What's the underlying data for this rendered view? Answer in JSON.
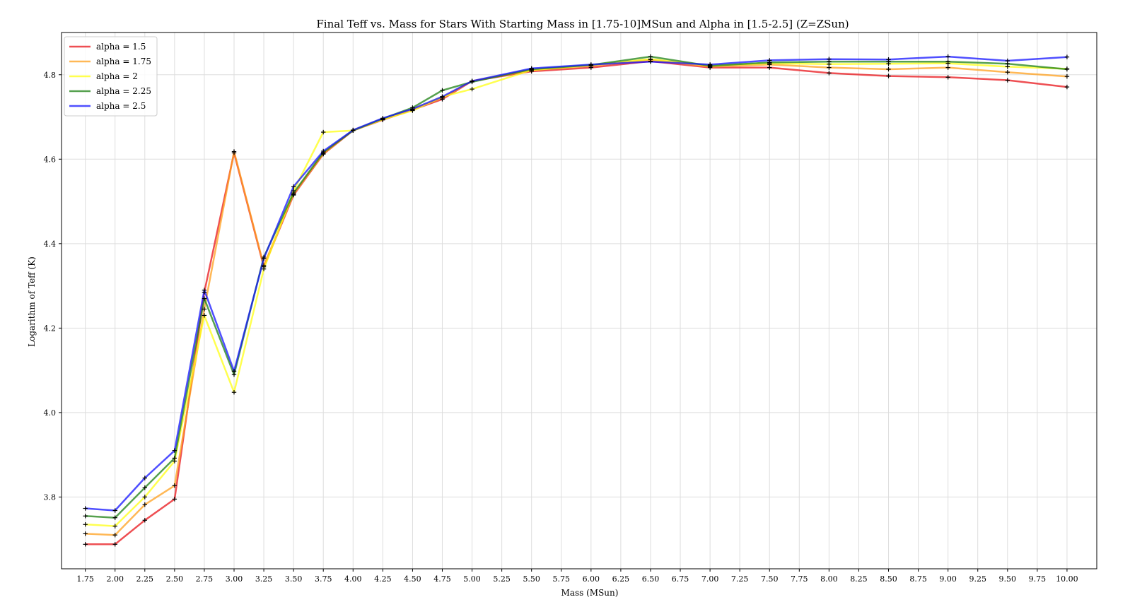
{
  "chart_data": {
    "type": "line",
    "title": "Final Teff vs. Mass for Stars With Starting Mass in [1.75-10]MSun and Alpha in [1.5-2.5] (Z=ZSun)",
    "xlabel": "Mass (MSun)",
    "ylabel": "Logarithm of Teff (K)",
    "xlim": [
      1.55,
      10.25
    ],
    "ylim": [
      3.63,
      4.9
    ],
    "x_ticks": [
      "1.75",
      "2.00",
      "2.25",
      "2.50",
      "2.75",
      "3.00",
      "3.25",
      "3.50",
      "3.75",
      "4.00",
      "4.25",
      "4.50",
      "4.75",
      "5.00",
      "5.25",
      "5.50",
      "5.75",
      "6.00",
      "6.25",
      "6.50",
      "6.75",
      "7.00",
      "7.25",
      "7.50",
      "7.75",
      "8.00",
      "8.25",
      "8.50",
      "8.75",
      "9.00",
      "9.25",
      "9.50",
      "9.75",
      "10.00"
    ],
    "y_ticks": [
      "3.8",
      "4.0",
      "4.2",
      "4.4",
      "4.6",
      "4.8"
    ],
    "grid": true,
    "legend_position": "top-left",
    "series": [
      {
        "name": "alpha = 1.5",
        "color": "#e8141a",
        "x": [
          1.75,
          2.0,
          2.25,
          2.5,
          2.75,
          3.0,
          3.25,
          3.5,
          3.75,
          4.0,
          4.25,
          4.5,
          4.75,
          5.0,
          5.5,
          6.0,
          6.5,
          7.0,
          7.5,
          8.0,
          8.5,
          9.0,
          9.5,
          10.0
        ],
        "y": [
          3.688,
          3.688,
          3.745,
          3.795,
          4.285,
          4.615,
          4.345,
          4.515,
          4.612,
          4.668,
          4.693,
          4.717,
          4.742,
          4.785,
          4.808,
          4.817,
          4.832,
          4.817,
          4.817,
          4.804,
          4.797,
          4.794,
          4.787,
          4.771
        ]
      },
      {
        "name": "alpha = 1.75",
        "color": "#ffa01e",
        "x": [
          1.75,
          2.0,
          2.25,
          2.5,
          2.75,
          3.0,
          3.25,
          3.5,
          3.75,
          4.0,
          4.25,
          4.5,
          4.75,
          5.0,
          5.5,
          6.0,
          6.5,
          7.0,
          7.5,
          8.0,
          8.5,
          9.0,
          9.5,
          10.0
        ],
        "y": [
          3.713,
          3.71,
          3.782,
          3.827,
          4.245,
          4.618,
          4.348,
          4.517,
          4.613,
          4.669,
          4.694,
          4.718,
          4.745,
          4.785,
          4.811,
          4.821,
          4.836,
          4.819,
          4.824,
          4.817,
          4.813,
          4.817,
          4.806,
          4.796
        ]
      },
      {
        "name": "alpha = 2",
        "color": "#ffff14",
        "x": [
          1.75,
          2.0,
          2.25,
          2.5,
          2.75,
          3.0,
          3.25,
          3.5,
          3.75,
          4.0,
          4.25,
          4.5,
          4.75,
          5.0,
          5.5,
          6.0,
          6.5,
          7.0,
          7.5,
          8.0,
          8.5,
          9.0,
          9.5,
          10.0
        ],
        "y": [
          3.735,
          3.731,
          3.8,
          3.885,
          4.23,
          4.048,
          4.34,
          4.525,
          4.664,
          4.668,
          4.694,
          4.715,
          4.748,
          4.766,
          4.811,
          4.823,
          4.837,
          4.822,
          4.827,
          4.825,
          4.826,
          4.827,
          4.819,
          4.814
        ]
      },
      {
        "name": "alpha = 2.25",
        "color": "#1e8214",
        "x": [
          1.75,
          2.0,
          2.25,
          2.5,
          2.75,
          3.0,
          3.25,
          3.5,
          3.75,
          4.0,
          4.25,
          4.5,
          4.75,
          5.0,
          5.5,
          6.0,
          6.5,
          7.0,
          7.5,
          8.0,
          8.5,
          9.0,
          9.5,
          10.0
        ],
        "y": [
          3.755,
          3.751,
          3.822,
          3.892,
          4.27,
          4.09,
          4.368,
          4.52,
          4.616,
          4.668,
          4.696,
          4.722,
          4.763,
          4.783,
          4.813,
          4.823,
          4.843,
          4.821,
          4.829,
          4.831,
          4.831,
          4.831,
          4.826,
          4.813
        ]
      },
      {
        "name": "alpha = 2.5",
        "color": "#1414ff",
        "x": [
          1.75,
          2.0,
          2.25,
          2.5,
          2.75,
          3.0,
          3.25,
          3.5,
          3.75,
          4.0,
          4.25,
          4.5,
          4.75,
          5.0,
          5.5,
          6.0,
          6.5,
          7.0,
          7.5,
          8.0,
          8.5,
          9.0,
          9.5,
          10.0
        ],
        "y": [
          3.773,
          3.768,
          3.845,
          3.91,
          4.29,
          4.098,
          4.365,
          4.535,
          4.619,
          4.669,
          4.697,
          4.719,
          4.748,
          4.785,
          4.815,
          4.824,
          4.831,
          4.824,
          4.834,
          4.837,
          4.836,
          4.843,
          4.833,
          4.842
        ]
      }
    ]
  }
}
